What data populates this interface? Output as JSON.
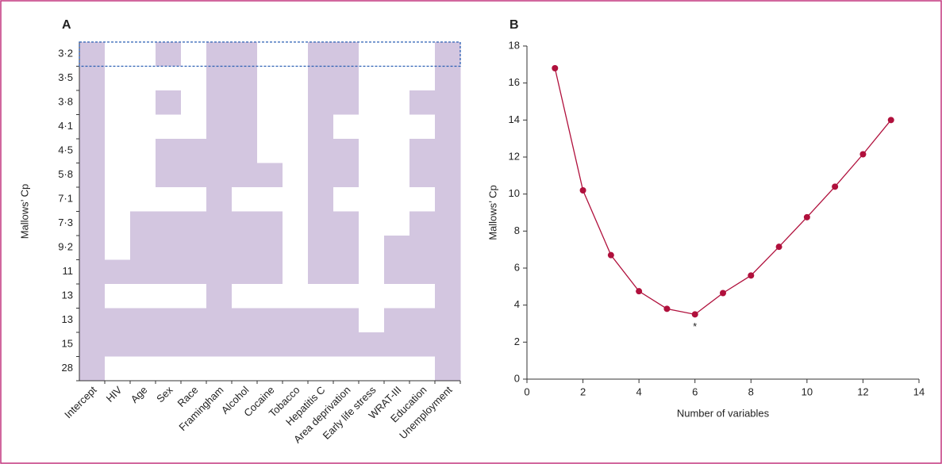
{
  "chart_data": [
    {
      "type": "heatmap",
      "panel": "A",
      "ylabel": "Mallows’ Cp",
      "rows": [
        "3·2",
        "3·5",
        "3·8",
        "4·1",
        "4·5",
        "5·8",
        "7·1",
        "7·3",
        "9·2",
        "11",
        "13",
        "13",
        "15",
        "28"
      ],
      "columns": [
        "Intercept",
        "HIV",
        "Age",
        "Sex",
        "Race",
        "Framingham",
        "Alcohol",
        "Cocaine",
        "Tobacco",
        "Hepatitis C",
        "Area deprivation",
        "Early life stress",
        "WRAT-III",
        "Education",
        "Unemployment"
      ],
      "values": [
        [
          1,
          0,
          0,
          1,
          0,
          1,
          1,
          0,
          0,
          1,
          1,
          0,
          0,
          0,
          1
        ],
        [
          1,
          0,
          0,
          0,
          0,
          1,
          1,
          0,
          0,
          1,
          1,
          0,
          0,
          0,
          1
        ],
        [
          1,
          0,
          0,
          1,
          0,
          1,
          1,
          0,
          0,
          1,
          1,
          0,
          0,
          1,
          1
        ],
        [
          1,
          0,
          0,
          0,
          0,
          1,
          1,
          0,
          0,
          1,
          0,
          0,
          0,
          0,
          1
        ],
        [
          1,
          0,
          0,
          1,
          1,
          1,
          1,
          0,
          0,
          1,
          1,
          0,
          0,
          1,
          1
        ],
        [
          1,
          0,
          0,
          1,
          1,
          1,
          1,
          1,
          0,
          1,
          1,
          0,
          0,
          1,
          1
        ],
        [
          1,
          0,
          0,
          0,
          0,
          1,
          0,
          0,
          0,
          1,
          0,
          0,
          0,
          0,
          1
        ],
        [
          1,
          0,
          1,
          1,
          1,
          1,
          1,
          1,
          0,
          1,
          1,
          0,
          0,
          1,
          1
        ],
        [
          1,
          0,
          1,
          1,
          1,
          1,
          1,
          1,
          0,
          1,
          1,
          0,
          1,
          1,
          1
        ],
        [
          1,
          1,
          1,
          1,
          1,
          1,
          1,
          1,
          0,
          1,
          1,
          0,
          1,
          1,
          1
        ],
        [
          1,
          0,
          0,
          0,
          0,
          1,
          0,
          0,
          0,
          0,
          0,
          0,
          0,
          0,
          1
        ],
        [
          1,
          1,
          1,
          1,
          1,
          1,
          1,
          1,
          1,
          1,
          1,
          0,
          1,
          1,
          1
        ],
        [
          1,
          1,
          1,
          1,
          1,
          1,
          1,
          1,
          1,
          1,
          1,
          1,
          1,
          1,
          1
        ],
        [
          1,
          0,
          0,
          0,
          0,
          0,
          0,
          0,
          0,
          0,
          0,
          0,
          0,
          0,
          1
        ]
      ],
      "color": "#d3c6e0",
      "highlight_row": 0
    },
    {
      "type": "line",
      "panel": "B",
      "xlabel": "Number of variables",
      "ylabel": "Mallows’ Cp",
      "x": [
        1,
        2,
        3,
        4,
        5,
        6,
        7,
        8,
        9,
        10,
        11,
        12,
        13
      ],
      "series": [
        {
          "color": "#b0103c",
          "values": [
            16.8,
            10.2,
            6.7,
            4.75,
            3.8,
            3.5,
            4.65,
            5.6,
            7.15,
            8.75,
            10.4,
            12.15,
            14.0
          ]
        }
      ],
      "xlim": [
        0,
        14
      ],
      "xticks": [
        0,
        2,
        4,
        6,
        8,
        10,
        12,
        14
      ],
      "ylim": [
        0,
        18
      ],
      "yticks": [
        0,
        2,
        4,
        6,
        8,
        10,
        12,
        14,
        16,
        18
      ],
      "annotations": [
        {
          "text": "*",
          "x": 6,
          "y": 3.5
        }
      ]
    }
  ]
}
